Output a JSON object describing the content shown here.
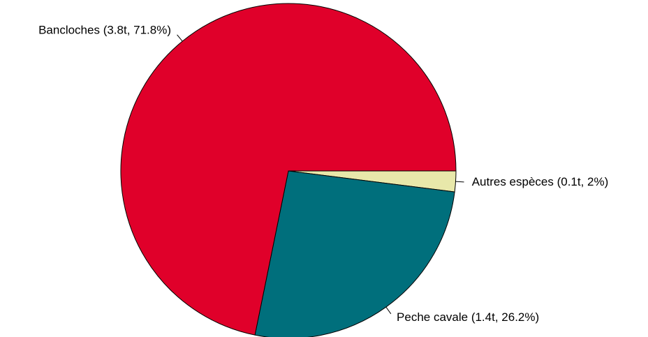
{
  "chart_data": {
    "type": "pie",
    "labels": [
      "Autres espèces (0.1t, 2%)",
      "Peche cavale (1.4t, 26.2%)",
      "Bancloches (3.8t, 71.8%)"
    ],
    "values": [
      2,
      26.2,
      71.8
    ],
    "colors": [
      "#e8e8aa",
      "#006f7c",
      "#e0002a"
    ]
  }
}
